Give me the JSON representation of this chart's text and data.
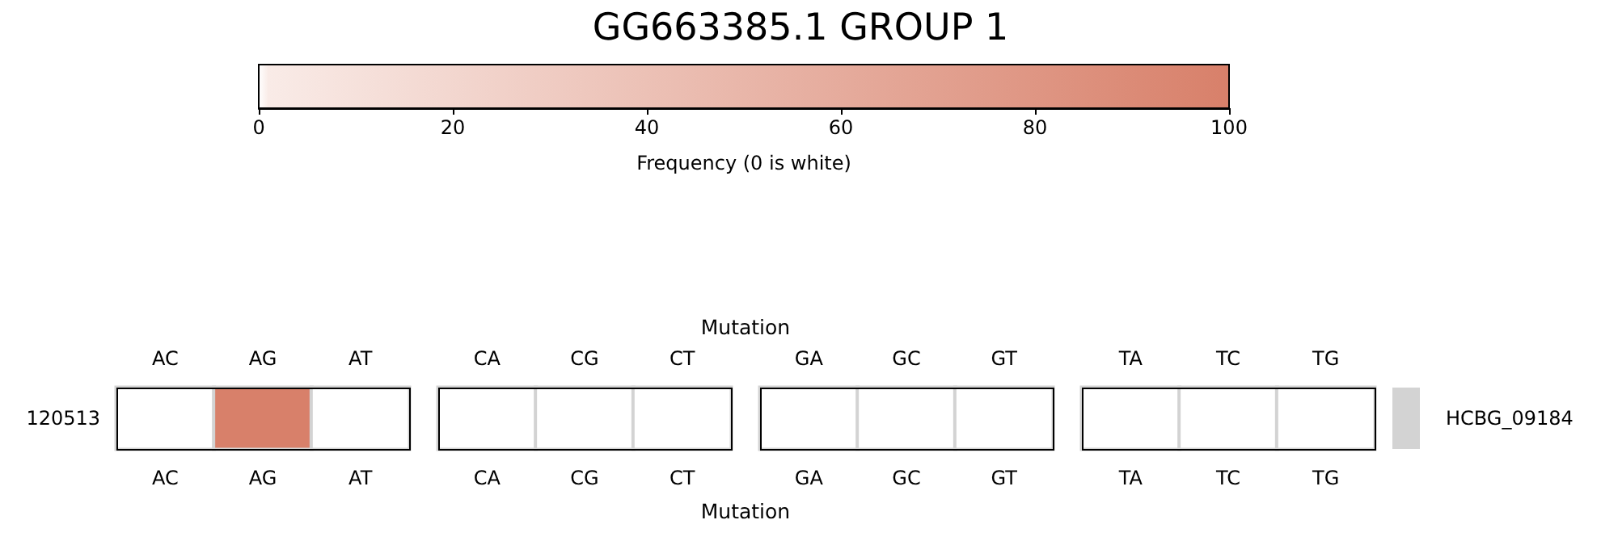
{
  "chart_data": {
    "type": "heatmap",
    "title": "GG663385.1 GROUP 1",
    "clabel": "Frequency (0 is white)",
    "xlabel": "Mutation",
    "x2label": "Mutation",
    "categories": [
      "AC",
      "AG",
      "AT",
      "CA",
      "CG",
      "CT",
      "GA",
      "GC",
      "GT",
      "TA",
      "TC",
      "TG"
    ],
    "y_categories": [
      "120513"
    ],
    "y2_categories": [
      "HCBG_09184"
    ],
    "cells": [
      [
        0,
        100,
        0,
        0,
        0,
        0,
        0,
        0,
        0,
        0,
        0,
        0
      ]
    ],
    "clim": [
      0,
      100
    ],
    "cticks": [
      0,
      20,
      40,
      60,
      80,
      100
    ]
  }
}
